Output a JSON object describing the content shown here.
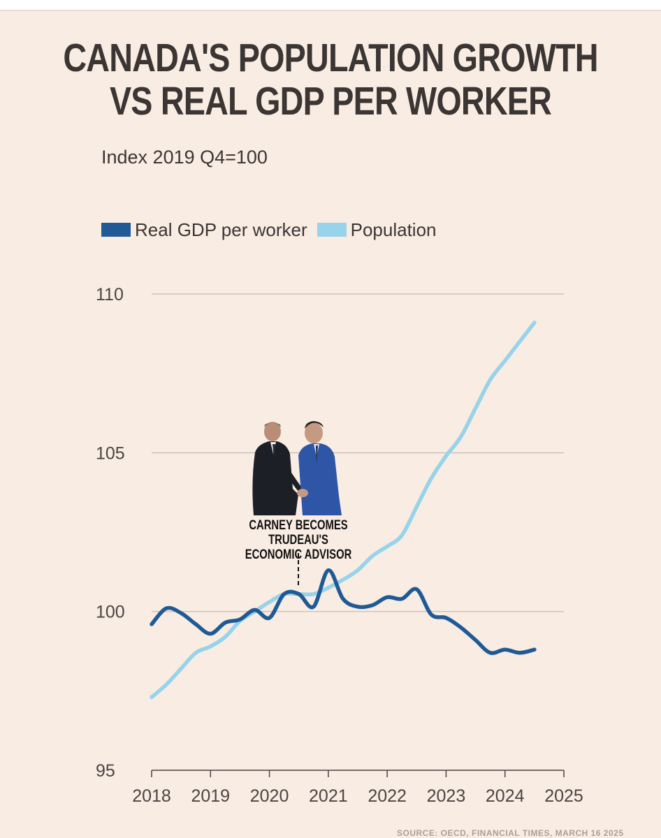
{
  "header": {
    "title_line1": "CANADA'S POPULATION GROWTH",
    "title_line2": "VS REAL GDP PER WORKER",
    "subtitle": "Index 2019 Q4=100"
  },
  "legend": [
    {
      "label": "Real GDP per worker",
      "color": "#1f5a96"
    },
    {
      "label": "Population",
      "color": "#97d3ea"
    }
  ],
  "annotation": {
    "line1": "CARNEY BECOMES TRUDEAU'S",
    "line2": "ECONOMIC ADVISOR",
    "x": 2020.5
  },
  "source": "SOURCE: OECD, FINANCIAL TIMES, MARCH 16 2025",
  "chart_data": {
    "type": "line",
    "title": "CANADA'S POPULATION GROWTH VS REAL GDP PER WORKER",
    "subtitle": "Index 2019 Q4=100",
    "xlabel": "",
    "ylabel": "",
    "xlim": [
      2018,
      2025
    ],
    "ylim": [
      95,
      110
    ],
    "xticks": [
      2018,
      2019,
      2020,
      2021,
      2022,
      2023,
      2024,
      2025
    ],
    "yticks": [
      95,
      100,
      105,
      110
    ],
    "grid": true,
    "legend_position": "top-left",
    "series": [
      {
        "name": "Real GDP per worker",
        "color": "#1f5a96",
        "x": [
          2018.0,
          2018.25,
          2018.5,
          2018.75,
          2019.0,
          2019.25,
          2019.5,
          2019.75,
          2020.0,
          2020.25,
          2020.5,
          2020.75,
          2021.0,
          2021.25,
          2021.5,
          2021.75,
          2022.0,
          2022.25,
          2022.5,
          2022.75,
          2023.0,
          2023.25,
          2023.5,
          2023.75,
          2024.0,
          2024.25,
          2024.5
        ],
        "values": [
          99.6,
          100.1,
          99.95,
          99.6,
          99.3,
          99.65,
          99.75,
          100.05,
          99.8,
          100.55,
          100.55,
          100.15,
          101.3,
          100.4,
          100.15,
          100.2,
          100.45,
          100.4,
          100.7,
          99.9,
          99.8,
          99.5,
          99.1,
          98.7,
          98.8,
          98.7,
          98.8
        ]
      },
      {
        "name": "Population",
        "color": "#97d3ea",
        "x": [
          2018.0,
          2018.25,
          2018.5,
          2018.75,
          2019.0,
          2019.25,
          2019.5,
          2019.75,
          2020.0,
          2020.25,
          2020.5,
          2020.75,
          2021.0,
          2021.25,
          2021.5,
          2021.75,
          2022.0,
          2022.25,
          2022.5,
          2022.75,
          2023.0,
          2023.25,
          2023.5,
          2023.75,
          2024.0,
          2024.25,
          2024.5
        ],
        "values": [
          97.3,
          97.7,
          98.2,
          98.7,
          98.9,
          99.2,
          99.7,
          100.0,
          100.3,
          100.55,
          100.55,
          100.55,
          100.75,
          101.0,
          101.3,
          101.75,
          102.05,
          102.4,
          103.3,
          104.2,
          104.9,
          105.5,
          106.4,
          107.3,
          107.9,
          108.5,
          109.1
        ]
      }
    ]
  }
}
